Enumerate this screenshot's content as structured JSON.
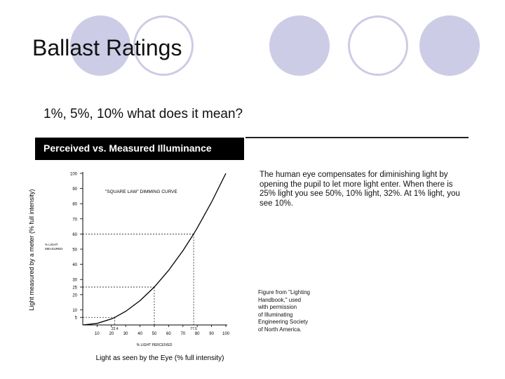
{
  "slide": {
    "title": "Ballast Ratings",
    "subtitle": "1%, 5%, 10% what does it mean?"
  },
  "figure": {
    "header": "Perceived vs. Measured Illuminance",
    "note": "The human eye compensates for diminishing light by opening the pupil to let more light enter. When there is 25% light you see 50%, 10% light, 32%. At 1% light, you see 10%.",
    "credit_lines": [
      "Figure from \"Lighting",
      "Handbook,\" used",
      "with permission",
      "of Illuminating",
      "Engineering Society",
      "of North America."
    ]
  },
  "colors": {
    "circle": "#cccce6",
    "header_bg": "#000000",
    "curve": "#000000"
  },
  "chart_data": {
    "type": "line",
    "annotation": "\"SQUARE LAW\" DIMMING CURVE",
    "xlabel": "Light as seen by the Eye (% full intensity)",
    "xlabel_inner": "% LIGHT PERCEIVED",
    "ylabel": "Light measured by a meter (% full intensity)",
    "ylabel_inner": [
      "% LIGHT",
      "MEASURED"
    ],
    "xlim": [
      0,
      100
    ],
    "ylim": [
      0,
      100
    ],
    "x_ticks": [
      10,
      20,
      30,
      40,
      50,
      60,
      70,
      80,
      90,
      100
    ],
    "y_ticks": [
      5,
      10,
      20,
      25,
      30,
      40,
      50,
      60,
      70,
      80,
      90,
      100
    ],
    "x_ticks_extra": [
      {
        "value": 22.4,
        "label": "22.4"
      },
      {
        "value": 77.5,
        "label": "77.5"
      }
    ],
    "series": [
      {
        "x": [
          0,
          10,
          20,
          22.4,
          30,
          40,
          50,
          60,
          70,
          77.5,
          80,
          90,
          100
        ],
        "y": [
          0,
          1,
          4,
          5,
          9,
          16,
          25,
          36,
          49,
          60,
          64,
          81,
          100
        ]
      }
    ],
    "reference_points": [
      {
        "x": 22.4,
        "y": 5
      },
      {
        "x": 50,
        "y": 25
      },
      {
        "x": 77.5,
        "y": 60
      }
    ],
    "grid": false
  }
}
